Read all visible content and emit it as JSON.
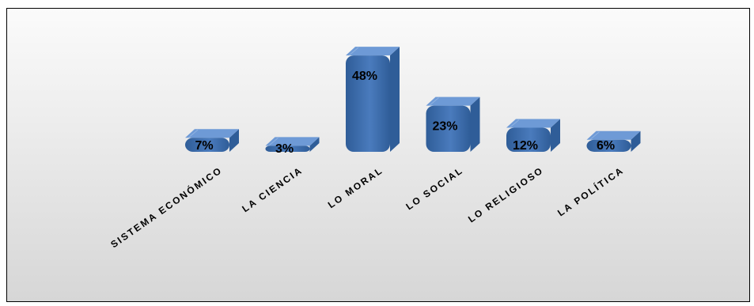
{
  "chart_data": {
    "type": "bar",
    "style": "3d-rounded-column",
    "title": "",
    "xlabel": "",
    "ylabel": "",
    "categories": [
      "SISTEMA ECONÓMICO",
      "LA CIENCIA",
      "LO MORAL",
      "LO SOCIAL",
      "LO RELIGIOSO",
      "LA POLÍTICA"
    ],
    "values": [
      7,
      3,
      48,
      23,
      12,
      6
    ],
    "data_labels": [
      "7%",
      "3%",
      "48%",
      "23%",
      "12%",
      "6%"
    ],
    "unit": "%",
    "ylim": [
      0,
      48
    ],
    "grid": false,
    "legend": "none",
    "colors": {
      "bar_front": "#4a7bbd",
      "bar_top": "#6e9ad6",
      "bar_side": "#2f5d98",
      "background_top": "#fbfbfb",
      "background_bottom": "#d6d6d6",
      "border": "#000000"
    }
  }
}
